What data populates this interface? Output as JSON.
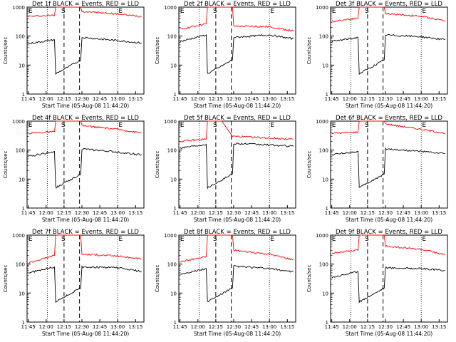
{
  "chart_data": [
    {
      "type": "line",
      "title": "Det 1f BLACK = Events, RED = LLD",
      "xlabel": "Start Time (05-Aug-08 11:44:20)",
      "ylabel": "Counts/sec",
      "yscale": "log",
      "ylim": [
        1,
        1000
      ],
      "xticks": [
        "11:45",
        "12:00",
        "12:15",
        "12:30",
        "12:45",
        "13:00",
        "13:15"
      ],
      "yticks": [
        "1",
        "10",
        "100",
        "1000"
      ],
      "markers": {
        "E1": "E",
        "S": "S",
        "E2": "E"
      },
      "series": [
        {
          "color": "#ff0000",
          "values": [
            {
              "t": "11:45",
              "y": 480
            },
            {
              "t": "12:07",
              "y": 520
            },
            {
              "t": "12:08",
              "y": 1000
            },
            {
              "t": "12:29",
              "y": 1000
            },
            {
              "t": "12:30",
              "y": 720
            },
            {
              "t": "13:00",
              "y": 580
            },
            {
              "t": "13:20",
              "y": 470
            }
          ]
        },
        {
          "color": "#000000",
          "values": [
            {
              "t": "11:45",
              "y": 55
            },
            {
              "t": "12:07",
              "y": 75
            },
            {
              "t": "12:08",
              "y": 5
            },
            {
              "t": "12:29",
              "y": 15
            },
            {
              "t": "12:30",
              "y": 90
            },
            {
              "t": "13:00",
              "y": 70
            },
            {
              "t": "13:20",
              "y": 58
            }
          ]
        }
      ]
    },
    {
      "type": "line",
      "title": "Det 2f BLACK = Events, RED = LLD",
      "xlabel": "Start Time (05-Aug-08 11:44:20)",
      "ylabel": "Counts/sec",
      "yscale": "log",
      "ylim": [
        1,
        1000
      ],
      "xticks": [
        "11:45",
        "12:00",
        "12:15",
        "12:30",
        "12:45",
        "13:00",
        "13:15"
      ],
      "yticks": [
        "1",
        "10",
        "100",
        "1000"
      ],
      "markers": {
        "E1": "E",
        "S": "S",
        "E2": "E"
      },
      "series": [
        {
          "color": "#ff0000",
          "values": [
            {
              "t": "11:45",
              "y": 170
            },
            {
              "t": "12:07",
              "y": 270
            },
            {
              "t": "12:08",
              "y": 1000
            },
            {
              "t": "12:29",
              "y": 1000
            },
            {
              "t": "12:30",
              "y": 220
            },
            {
              "t": "13:00",
              "y": 210
            },
            {
              "t": "13:20",
              "y": 150
            }
          ]
        },
        {
          "color": "#000000",
          "values": [
            {
              "t": "11:45",
              "y": 65
            },
            {
              "t": "12:07",
              "y": 110
            },
            {
              "t": "12:08",
              "y": 5
            },
            {
              "t": "12:29",
              "y": 15
            },
            {
              "t": "12:30",
              "y": 90
            },
            {
              "t": "13:00",
              "y": 110
            },
            {
              "t": "13:20",
              "y": 80
            }
          ]
        }
      ]
    },
    {
      "type": "line",
      "title": "Det 3f BLACK = Events, RED = LLD",
      "xlabel": "Start Time (05-Aug-08 11:44:20)",
      "ylabel": "Counts/sec",
      "yscale": "log",
      "ylim": [
        1,
        1000
      ],
      "xticks": [
        "11:45",
        "12:00",
        "12:15",
        "12:30",
        "12:45",
        "13:00",
        "13:15"
      ],
      "yticks": [
        "1",
        "10",
        "100",
        "1000"
      ],
      "markers": {
        "E1": "E",
        "S": "S",
        "E2": "E"
      },
      "series": [
        {
          "color": "#ff0000",
          "values": [
            {
              "t": "11:45",
              "y": 320
            },
            {
              "t": "12:07",
              "y": 420
            },
            {
              "t": "12:08",
              "y": 1000
            },
            {
              "t": "12:29",
              "y": 1000
            },
            {
              "t": "12:30",
              "y": 600
            },
            {
              "t": "13:00",
              "y": 480
            },
            {
              "t": "13:20",
              "y": 340
            }
          ]
        },
        {
          "color": "#000000",
          "values": [
            {
              "t": "11:45",
              "y": 65
            },
            {
              "t": "12:07",
              "y": 90
            },
            {
              "t": "12:08",
              "y": 5
            },
            {
              "t": "12:29",
              "y": 15
            },
            {
              "t": "12:30",
              "y": 110
            },
            {
              "t": "13:00",
              "y": 95
            },
            {
              "t": "13:20",
              "y": 75
            }
          ]
        }
      ]
    },
    {
      "type": "line",
      "title": "Det 4f BLACK = Events, RED = LLD",
      "xlabel": "Start Time (05-Aug-08 11:44:20)",
      "ylabel": "Counts/sec",
      "yscale": "log",
      "ylim": [
        1,
        1000
      ],
      "xticks": [
        "11:45",
        "12:00",
        "12:15",
        "12:30",
        "12:45",
        "13:00",
        "13:15"
      ],
      "yticks": [
        "1",
        "10",
        "100",
        "1000"
      ],
      "markers": {
        "E1": "E",
        "S": "S",
        "E2": "E"
      },
      "series": [
        {
          "color": "#ff0000",
          "values": [
            {
              "t": "11:45",
              "y": 380
            },
            {
              "t": "12:07",
              "y": 430
            },
            {
              "t": "12:08",
              "y": 1000
            },
            {
              "t": "12:29",
              "y": 1000
            },
            {
              "t": "12:30",
              "y": 700
            },
            {
              "t": "13:00",
              "y": 520
            },
            {
              "t": "13:20",
              "y": 390
            }
          ]
        },
        {
          "color": "#000000",
          "values": [
            {
              "t": "11:45",
              "y": 60
            },
            {
              "t": "12:07",
              "y": 90
            },
            {
              "t": "12:08",
              "y": 5
            },
            {
              "t": "12:29",
              "y": 15
            },
            {
              "t": "12:30",
              "y": 110
            },
            {
              "t": "13:00",
              "y": 85
            },
            {
              "t": "13:20",
              "y": 68
            }
          ]
        }
      ]
    },
    {
      "type": "line",
      "title": "Det 5f BLACK = Events, RED = LLD",
      "xlabel": "Start Time (05-Aug-08 11:44:20)",
      "ylabel": "Counts/sec",
      "yscale": "log",
      "ylim": [
        1,
        1000
      ],
      "xticks": [
        "11:45",
        "12:00",
        "12:15",
        "12:30",
        "12:45",
        "13:00",
        "13:15"
      ],
      "yticks": [
        "1",
        "10",
        "100",
        "1000"
      ],
      "markers": {
        "E1": "E",
        "S": "S",
        "E2": "E"
      },
      "series": [
        {
          "color": "#ff0000",
          "values": [
            {
              "t": "11:45",
              "y": 200
            },
            {
              "t": "12:07",
              "y": 240
            },
            {
              "t": "12:08",
              "y": 1000
            },
            {
              "t": "12:20",
              "y": 1000
            },
            {
              "t": "12:29",
              "y": 300
            },
            {
              "t": "13:00",
              "y": 260
            },
            {
              "t": "13:20",
              "y": 240
            }
          ]
        },
        {
          "color": "#000000",
          "values": [
            {
              "t": "11:45",
              "y": 120
            },
            {
              "t": "12:07",
              "y": 160
            },
            {
              "t": "12:08",
              "y": 5
            },
            {
              "t": "12:29",
              "y": 15
            },
            {
              "t": "12:30",
              "y": 170
            },
            {
              "t": "13:00",
              "y": 150
            },
            {
              "t": "13:20",
              "y": 135
            }
          ]
        }
      ]
    },
    {
      "type": "line",
      "title": "Det 6f BLACK = Events, RED = LLD",
      "xlabel": "Start Time (05-Aug-08 11:44:20)",
      "ylabel": "Counts/sec",
      "yscale": "log",
      "ylim": [
        1,
        1000
      ],
      "xticks": [
        "11:45",
        "12:00",
        "12:15",
        "12:30",
        "12:45",
        "13:00",
        "13:15"
      ],
      "yticks": [
        "1",
        "10",
        "100",
        "1000"
      ],
      "markers": {
        "E1": "E",
        "S": "S",
        "E2": "E"
      },
      "series": [
        {
          "color": "#ff0000",
          "values": [
            {
              "t": "11:45",
              "y": 380
            },
            {
              "t": "12:07",
              "y": 420
            },
            {
              "t": "12:08",
              "y": 1000
            },
            {
              "t": "12:29",
              "y": 1000
            },
            {
              "t": "12:30",
              "y": 800
            },
            {
              "t": "13:00",
              "y": 520
            },
            {
              "t": "13:20",
              "y": 380
            }
          ]
        },
        {
          "color": "#000000",
          "values": [
            {
              "t": "11:45",
              "y": 70
            },
            {
              "t": "12:07",
              "y": 90
            },
            {
              "t": "12:08",
              "y": 5
            },
            {
              "t": "12:29",
              "y": 15
            },
            {
              "t": "12:30",
              "y": 110
            },
            {
              "t": "13:00",
              "y": 90
            },
            {
              "t": "13:20",
              "y": 75
            }
          ]
        }
      ]
    },
    {
      "type": "line",
      "title": "Det 7f BLACK = Events, RED = LLD",
      "xlabel": "Start Time (05-Aug-08 11:44:20)",
      "ylabel": "Counts/sec",
      "yscale": "log",
      "ylim": [
        1,
        1000
      ],
      "xticks": [
        "11:45",
        "12:00",
        "12:15",
        "12:30",
        "12:45",
        "13:00",
        "13:15"
      ],
      "yticks": [
        "1",
        "10",
        "100",
        "1000"
      ],
      "markers": {
        "E1": "E",
        "S": "S",
        "E2": "E"
      },
      "series": [
        {
          "color": "#ff0000",
          "values": [
            {
              "t": "11:45",
              "y": 110
            },
            {
              "t": "12:07",
              "y": 200
            },
            {
              "t": "12:08",
              "y": 1000
            },
            {
              "t": "12:29",
              "y": 1000
            },
            {
              "t": "12:30",
              "y": 220
            },
            {
              "t": "13:00",
              "y": 190
            },
            {
              "t": "13:20",
              "y": 150
            }
          ]
        },
        {
          "color": "#000000",
          "values": [
            {
              "t": "11:45",
              "y": 50
            },
            {
              "t": "12:07",
              "y": 80
            },
            {
              "t": "12:08",
              "y": 5
            },
            {
              "t": "12:29",
              "y": 15
            },
            {
              "t": "12:30",
              "y": 80
            },
            {
              "t": "13:00",
              "y": 75
            },
            {
              "t": "13:20",
              "y": 55
            }
          ]
        }
      ]
    },
    {
      "type": "line",
      "title": "Det 8f BLACK = Events, RED = LLD",
      "xlabel": "Start Time (05-Aug-08 11:44:20)",
      "ylabel": "Counts/sec",
      "yscale": "log",
      "ylim": [
        1,
        1000
      ],
      "xticks": [
        "11:45",
        "12:00",
        "12:15",
        "12:30",
        "12:45",
        "13:00",
        "13:15"
      ],
      "yticks": [
        "1",
        "10",
        "100",
        "1000"
      ],
      "markers": {
        "E1": "E",
        "S": "S",
        "E2": "E"
      },
      "series": [
        {
          "color": "#ff0000",
          "values": [
            {
              "t": "11:45",
              "y": 120
            },
            {
              "t": "12:07",
              "y": 180
            },
            {
              "t": "12:08",
              "y": 1000
            },
            {
              "t": "12:29",
              "y": 1000
            },
            {
              "t": "12:30",
              "y": 300
            },
            {
              "t": "13:00",
              "y": 220
            },
            {
              "t": "13:20",
              "y": 140
            }
          ]
        },
        {
          "color": "#000000",
          "values": [
            {
              "t": "11:45",
              "y": 45
            },
            {
              "t": "12:07",
              "y": 70
            },
            {
              "t": "12:08",
              "y": 5
            },
            {
              "t": "12:29",
              "y": 15
            },
            {
              "t": "12:30",
              "y": 85
            },
            {
              "t": "13:00",
              "y": 70
            },
            {
              "t": "13:20",
              "y": 55
            }
          ]
        }
      ]
    },
    {
      "type": "line",
      "title": "Det 9f BLACK = Events, RED = LLD",
      "xlabel": "Start Time (05-Aug-08 11:44:20)",
      "ylabel": "Counts/sec",
      "yscale": "log",
      "ylim": [
        1,
        1000
      ],
      "xticks": [
        "11:45",
        "12:00",
        "12:15",
        "12:30",
        "12:45",
        "13:00",
        "13:15"
      ],
      "yticks": [
        "1",
        "10",
        "100",
        "1000"
      ],
      "markers": {
        "E1": "E",
        "S": "S",
        "E2": "E"
      },
      "series": [
        {
          "color": "#ff0000",
          "values": [
            {
              "t": "11:45",
              "y": 240
            },
            {
              "t": "12:07",
              "y": 300
            },
            {
              "t": "12:08",
              "y": 1000
            },
            {
              "t": "12:29",
              "y": 1000
            },
            {
              "t": "12:30",
              "y": 420
            },
            {
              "t": "13:00",
              "y": 320
            },
            {
              "t": "13:20",
              "y": 210
            }
          ]
        },
        {
          "color": "#000000",
          "values": [
            {
              "t": "11:45",
              "y": 35
            },
            {
              "t": "12:07",
              "y": 55
            },
            {
              "t": "12:08",
              "y": 5
            },
            {
              "t": "12:29",
              "y": 15
            },
            {
              "t": "12:30",
              "y": 75
            },
            {
              "t": "13:00",
              "y": 70
            },
            {
              "t": "13:20",
              "y": 60
            }
          ]
        }
      ]
    }
  ]
}
